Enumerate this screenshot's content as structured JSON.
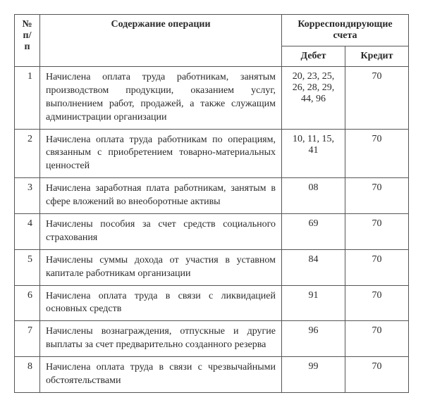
{
  "headers": {
    "num": "№ п/п",
    "content": "Содержание операции",
    "accounts": "Корреспондирующие счета",
    "debit": "Дебет",
    "credit": "Кредит"
  },
  "rows": [
    {
      "num": "1",
      "content": "Начислена оплата труда работникам, занятым производством продукции, оказанием услуг, выполнением работ, продажей, а также служащим администрации организации",
      "debit": "20, 23, 25, 26, 28, 29, 44, 96",
      "credit": "70"
    },
    {
      "num": "2",
      "content": "Начислена оплата труда работникам по операциям, связанным с приобретением товарно-материальных ценностей",
      "debit": "10, 11, 15, 41",
      "credit": "70"
    },
    {
      "num": "3",
      "content": "Начислена заработная плата работникам, занятым в сфере вложений во внеоборотные активы",
      "debit": "08",
      "credit": "70"
    },
    {
      "num": "4",
      "content": "Начислены пособия за счет средств социального страхования",
      "debit": "69",
      "credit": "70"
    },
    {
      "num": "5",
      "content": "Начислены суммы дохода от участия в уставном капитале работникам организации",
      "debit": "84",
      "credit": "70"
    },
    {
      "num": "6",
      "content": "Начислена оплата труда в связи с ликвидацией основных средств",
      "debit": "91",
      "credit": "70"
    },
    {
      "num": "7",
      "content": "Начислены вознаграждения, отпускные и другие выплаты за счет предварительно созданного резерва",
      "debit": "96",
      "credit": "70"
    },
    {
      "num": "8",
      "content": "Начислена оплата труда в связи с чрезвычайными обстоятельствами",
      "debit": "99",
      "credit": "70"
    }
  ]
}
